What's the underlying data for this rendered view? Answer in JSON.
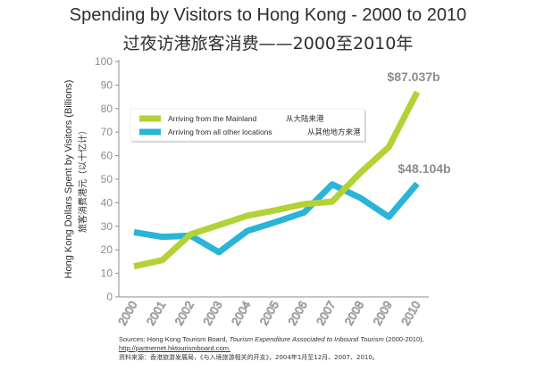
{
  "title_en": "Spending by Visitors to Hong Kong - 2000 to 2010",
  "title_zh": "过夜访港旅客消费——2000至2010年",
  "sources": {
    "prefix": "Sources: Hong Kong Tourism Board, ",
    "report_title": "Tourism Expenditure Associated to Inbound Tourism",
    "suffix": " (2000-2010),",
    "link": "http://partnernet.hktourismboard.com.",
    "zh": "资料来源：香港旅游发展局，《与入境旅游相关的开支》，2004年1月至12月、2007、2010。"
  },
  "colors": {
    "mainland": "#b2d235",
    "other": "#29b4d8",
    "axis": "#8c8c8c",
    "callout": "#8c8c8c",
    "legend_bg": "#ffffff"
  },
  "chart_data": {
    "type": "line",
    "ylabel_en": "Hong Kong Dollars Spent by Visitors (Billions)",
    "ylabel_zh": "旅客消费港元（以十亿计）",
    "ylim": [
      0,
      100
    ],
    "yticks": [
      0,
      10,
      20,
      30,
      40,
      50,
      60,
      70,
      80,
      90,
      100
    ],
    "categories": [
      "2000",
      "2001",
      "2002",
      "2003",
      "2004",
      "2005",
      "2006",
      "2007",
      "2008",
      "2009",
      "2010"
    ],
    "series": [
      {
        "name": "Arriving from the Mainland",
        "name_zh": "从大陆来港",
        "color": "#b2d235",
        "values": [
          13,
          15.6,
          26.6,
          30.5,
          34.5,
          36.8,
          39.4,
          40.5,
          52.8,
          63.7,
          87.037
        ]
      },
      {
        "name": "Arriving from all other locations",
        "name_zh": "从其他地方来港",
        "color": "#29b4d8",
        "values": [
          27.5,
          25.5,
          26,
          19,
          28,
          31.8,
          35.8,
          47.8,
          42,
          34,
          48.104
        ]
      }
    ],
    "end_labels": [
      "$87.037b",
      "$48.104b"
    ],
    "grid": false,
    "legend_position": "upper-left"
  }
}
